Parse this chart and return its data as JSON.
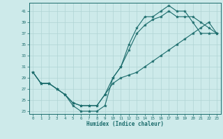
{
  "xlabel": "Humidex (Indice chaleur)",
  "bg_color": "#cdeaea",
  "line_color": "#1a6b6b",
  "grid_color": "#afd4d4",
  "xlim": [
    -0.5,
    23.5
  ],
  "ylim": [
    22.5,
    42.5
  ],
  "xticks": [
    0,
    1,
    2,
    3,
    4,
    5,
    6,
    7,
    8,
    9,
    10,
    11,
    12,
    13,
    14,
    15,
    16,
    17,
    18,
    19,
    20,
    21,
    22,
    23
  ],
  "yticks": [
    23,
    25,
    27,
    29,
    31,
    33,
    35,
    37,
    39,
    41
  ],
  "line1_x": [
    0,
    1,
    2,
    3,
    4,
    5,
    6,
    7,
    8,
    9,
    10,
    11,
    12,
    13,
    14,
    15,
    16,
    17,
    18,
    19,
    20,
    21,
    22,
    23
  ],
  "line1_y": [
    30,
    28,
    28,
    27,
    26,
    24,
    23,
    23,
    23,
    24,
    29,
    31,
    35,
    38,
    40,
    40,
    41,
    42,
    41,
    41,
    39,
    37,
    37,
    37
  ],
  "line2_x": [
    0,
    1,
    2,
    3,
    4,
    5,
    6,
    7,
    8,
    9,
    10,
    11,
    12,
    13,
    14,
    15,
    16,
    17,
    18,
    19,
    20,
    21,
    22,
    23
  ],
  "line2_y": [
    30,
    28,
    28,
    27,
    26,
    24.5,
    24,
    24,
    24,
    26,
    28,
    29,
    29.5,
    30,
    31,
    32,
    33,
    34,
    35,
    36,
    37,
    38,
    39,
    37
  ],
  "line3_x": [
    0,
    1,
    2,
    3,
    4,
    5,
    6,
    7,
    8,
    9,
    10,
    11,
    12,
    13,
    14,
    15,
    16,
    17,
    18,
    19,
    20,
    21,
    22,
    23
  ],
  "line3_y": [
    30,
    28,
    28,
    27,
    26,
    24.5,
    24,
    24,
    24,
    26,
    29,
    31,
    34,
    37,
    38.5,
    39.5,
    40,
    41,
    40,
    40,
    40,
    39,
    38,
    37
  ]
}
